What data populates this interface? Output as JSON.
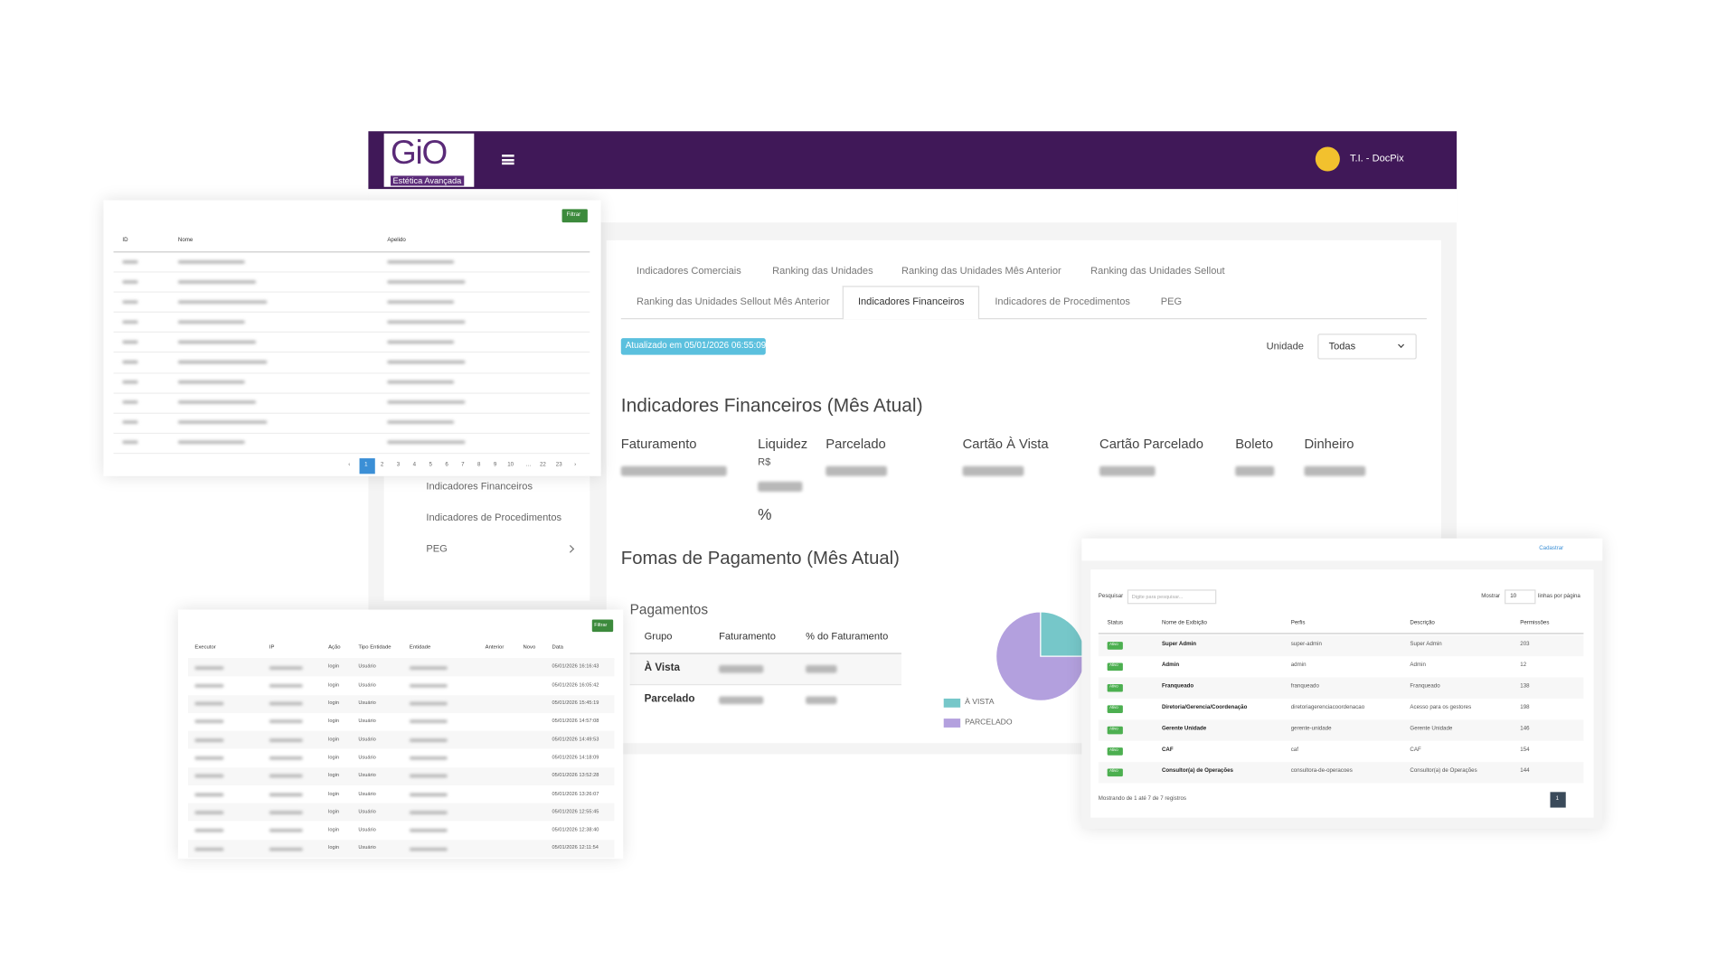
{
  "header": {
    "logo": "GiO",
    "logo_sub": "Estética Avançada",
    "user": "T.I. - DocPix"
  },
  "tabs": {
    "row1": [
      "Indicadores Comerciais",
      "Ranking das Unidades",
      "Ranking das Unidades Mês Anterior",
      "Ranking das Unidades Sellout"
    ],
    "row2": [
      "Ranking das Unidades Sellout Mês Anterior",
      "Indicadores Financeiros",
      "Indicadores de Procedimentos",
      "PEG"
    ]
  },
  "updated": "Atualizado em 05/01/2026 06:55:09",
  "filter": {
    "label": "Unidade",
    "value": "Todas"
  },
  "section_title": "Indicadores Financeiros (Mês Atual)",
  "kpis": [
    "Faturamento",
    "Liquidez",
    "Parcelado",
    "Cartão À Vista",
    "Cartão Parcelado",
    "Boleto",
    "Dinheiro"
  ],
  "liquidez_unit": "R$",
  "liquidez_pct": "%",
  "payments": {
    "title": "Fomas de Pagamento (Mês Atual)",
    "subtitle": "Pagamentos",
    "headers": [
      "Grupo",
      "Faturamento",
      "% do Faturamento"
    ],
    "rows": [
      "À Vista",
      "Parcelado"
    ]
  },
  "chart_data": {
    "type": "pie",
    "categories": [
      "À VISTA",
      "PARCELADO"
    ],
    "values": [
      25,
      75
    ],
    "colors": [
      "#76c7c9",
      "#b3a0de"
    ]
  },
  "sidebar": [
    "Indicadores Financeiros",
    "Indicadores de Procedimentos",
    "PEG"
  ],
  "panel1": {
    "button": "Filtrar",
    "headers": [
      "ID",
      "Nome",
      "Apelido"
    ],
    "pagination": [
      "‹",
      "1",
      "2",
      "3",
      "4",
      "5",
      "6",
      "7",
      "8",
      "9",
      "10",
      "…",
      "22",
      "23",
      "›"
    ]
  },
  "panel2": {
    "button": "Filtrar",
    "headers": [
      "Executor",
      "IP",
      "Ação",
      "Tipo Entidade",
      "Entidade",
      "Anterior",
      "Novo",
      "Data"
    ],
    "rows": [
      {
        "acao": "login",
        "tipo": "Usuário",
        "data": "05/01/2026 16:16:43"
      },
      {
        "acao": "login",
        "tipo": "Usuário",
        "data": "05/01/2026 16:05:42"
      },
      {
        "acao": "login",
        "tipo": "Usuário",
        "data": "05/01/2026 15:45:19"
      },
      {
        "acao": "login",
        "tipo": "Usuário",
        "data": "05/01/2026 14:57:08"
      },
      {
        "acao": "login",
        "tipo": "Usuário",
        "data": "05/01/2026 14:49:53"
      },
      {
        "acao": "login",
        "tipo": "Usuário",
        "data": "05/01/2026 14:18:09"
      },
      {
        "acao": "login",
        "tipo": "Usuário",
        "data": "05/01/2026 13:52:28"
      },
      {
        "acao": "login",
        "tipo": "Usuário",
        "data": "05/01/2026 13:26:07"
      },
      {
        "acao": "login",
        "tipo": "Usuário",
        "data": "05/01/2026 12:55:45"
      },
      {
        "acao": "login",
        "tipo": "Usuário",
        "data": "05/01/2026 12:38:40"
      },
      {
        "acao": "login",
        "tipo": "Usuário",
        "data": "05/01/2026 12:11:54"
      }
    ]
  },
  "panel3": {
    "action": "Cadastrar",
    "search_label": "Pesquisar",
    "search_placeholder": "Digite para pesquisar...",
    "show_label": "Mostrar",
    "show_value": "10",
    "show_suffix": "linhas por página",
    "headers": [
      "Status",
      "Nome de Exibição",
      "Perfis",
      "Descrição",
      "Permissões"
    ],
    "rows": [
      [
        "Ativo",
        "Super Admin",
        "super-admin",
        "Super Admin",
        "203"
      ],
      [
        "Ativo",
        "Admin",
        "admin",
        "Admin",
        "12"
      ],
      [
        "Ativo",
        "Franqueado",
        "franqueado",
        "Franqueado",
        "138"
      ],
      [
        "Ativo",
        "Diretoria/Gerencia/Coordenação",
        "diretoriagerenciacoordenacao",
        "Acesso para os gestores",
        "198"
      ],
      [
        "Ativo",
        "Gerente Unidade",
        "gerente-unidade",
        "Gerente Unidade",
        "146"
      ],
      [
        "Ativo",
        "CAF",
        "caf",
        "CAF",
        "154"
      ],
      [
        "Ativo",
        "Consultor(a) de Operações",
        "consultora-de-operacoes",
        "Consultor(a) de Operações",
        "144"
      ]
    ],
    "footer": "Mostrando de 1 até 7 de 7 registros",
    "page": "1"
  }
}
